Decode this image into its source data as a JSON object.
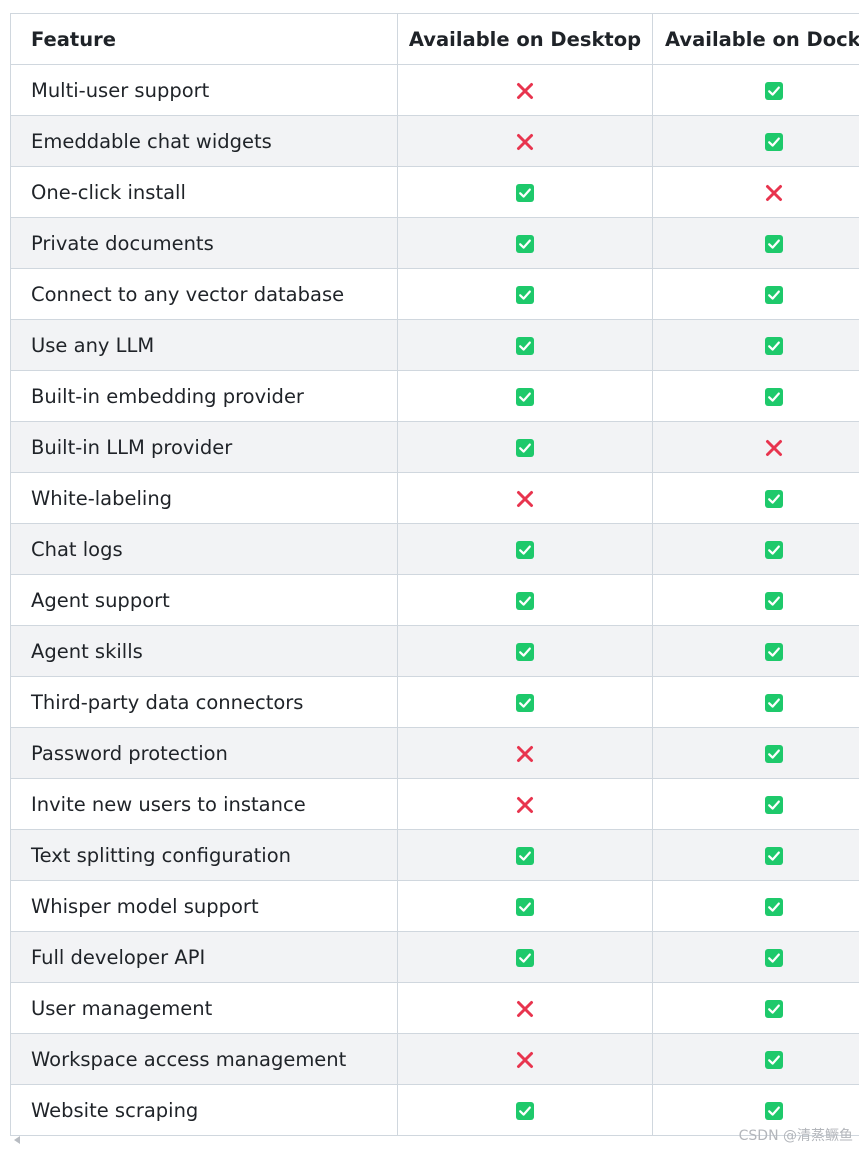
{
  "table": {
    "headers": [
      "Feature",
      "Available on Desktop",
      "Available on Docker"
    ],
    "rows": [
      {
        "feature": "Multi-user support",
        "desktop": "cross",
        "docker": "check"
      },
      {
        "feature": "Emeddable chat widgets",
        "desktop": "cross",
        "docker": "check"
      },
      {
        "feature": "One-click install",
        "desktop": "check",
        "docker": "cross"
      },
      {
        "feature": "Private documents",
        "desktop": "check",
        "docker": "check"
      },
      {
        "feature": "Connect to any vector database",
        "desktop": "check",
        "docker": "check"
      },
      {
        "feature": "Use any LLM",
        "desktop": "check",
        "docker": "check"
      },
      {
        "feature": "Built-in embedding provider",
        "desktop": "check",
        "docker": "check"
      },
      {
        "feature": "Built-in LLM provider",
        "desktop": "check",
        "docker": "cross"
      },
      {
        "feature": "White-labeling",
        "desktop": "cross",
        "docker": "check"
      },
      {
        "feature": "Chat logs",
        "desktop": "check",
        "docker": "check"
      },
      {
        "feature": "Agent support",
        "desktop": "check",
        "docker": "check"
      },
      {
        "feature": "Agent skills",
        "desktop": "check",
        "docker": "check"
      },
      {
        "feature": "Third-party data connectors",
        "desktop": "check",
        "docker": "check"
      },
      {
        "feature": "Password protection",
        "desktop": "cross",
        "docker": "check"
      },
      {
        "feature": "Invite new users to instance",
        "desktop": "cross",
        "docker": "check"
      },
      {
        "feature": "Text splitting configuration",
        "desktop": "check",
        "docker": "check"
      },
      {
        "feature": "Whisper model support",
        "desktop": "check",
        "docker": "check"
      },
      {
        "feature": "Full developer API",
        "desktop": "check",
        "docker": "check"
      },
      {
        "feature": "User management",
        "desktop": "cross",
        "docker": "check"
      },
      {
        "feature": "Workspace access management",
        "desktop": "cross",
        "docker": "check"
      },
      {
        "feature": "Website scraping",
        "desktop": "check",
        "docker": "check"
      }
    ]
  },
  "icons": {
    "check": "check-box-icon",
    "cross": "cross-icon"
  },
  "colors": {
    "check": "#1ec96b",
    "cross": "#e8344e"
  },
  "watermark": "CSDN @清蒸鳜鱼"
}
